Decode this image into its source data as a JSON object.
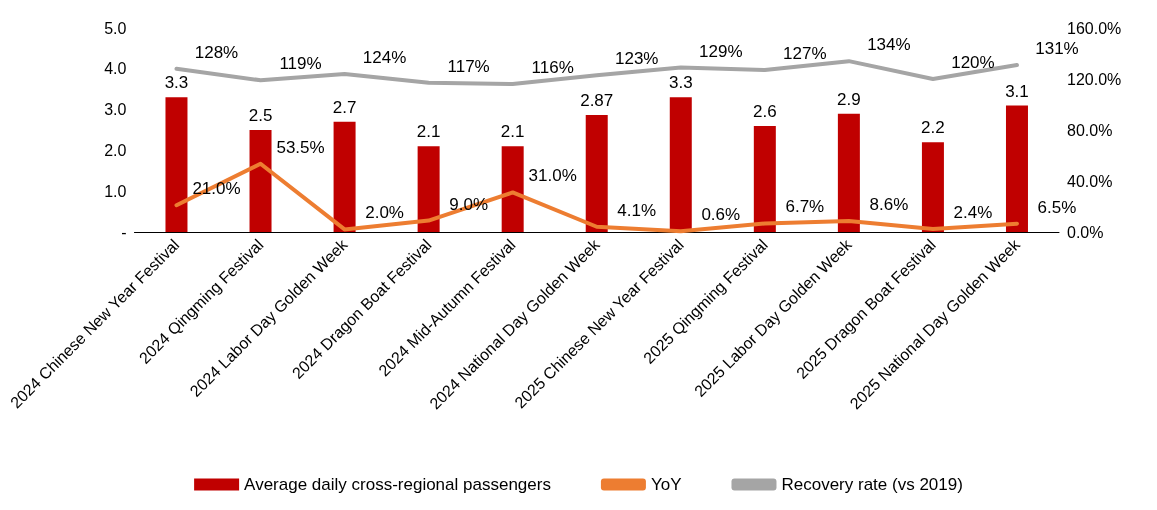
{
  "chart_data": {
    "type": "bar",
    "categories": [
      "2024 Chinese New Year Festival",
      "2024 Qingming Festival",
      "2024 Labor Day Golden Week",
      "2024 Dragon Boat Festival",
      "2024 Mid-Autumn Festival",
      "2024 National Day Golden Week",
      "2025 Chinese New Year Festival",
      "2025 Qingming Festival",
      "2025 Labor Day Golden Week",
      "2025 Dragon Boat Festival",
      "2025 National Day Golden Week"
    ],
    "series": [
      {
        "name": "Average daily cross-regional passengers",
        "color": "#c00000",
        "values": [
          3.3,
          2.5,
          2.7,
          2.1,
          2.1,
          2.87,
          3.3,
          2.6,
          2.9,
          2.2,
          3.1
        ]
      },
      {
        "name": "YoY",
        "type": "line",
        "axis": "y2",
        "color": "#ed7d31",
        "values": [
          21.0,
          53.5,
          2.0,
          9.0,
          31.0,
          4.1,
          0.6,
          6.7,
          8.6,
          2.4,
          6.5
        ],
        "value_labels": [
          "21.0%",
          "53.5%",
          "2.0%",
          "9.0%",
          "31.0%",
          "4.1%",
          "0.6%",
          "6.7%",
          "8.6%",
          "2.4%",
          "6.5%"
        ]
      },
      {
        "name": "Recovery rate (vs 2019)",
        "type": "line",
        "axis": "y2",
        "color": "#a5a5a5",
        "values": [
          128,
          119,
          124,
          117,
          116,
          123,
          129,
          127,
          134,
          120,
          131
        ],
        "value_labels": [
          "128%",
          "119%",
          "124%",
          "117%",
          "116%",
          "123%",
          "129%",
          "127%",
          "134%",
          "120%",
          "131%"
        ]
      }
    ],
    "data_labels": true,
    "ylim": [
      0,
      5
    ],
    "yticks": [
      {
        "value": 0,
        "label": "-"
      },
      {
        "value": 1,
        "label": "1.0"
      },
      {
        "value": 2,
        "label": "2.0"
      },
      {
        "value": 3,
        "label": "3.0"
      },
      {
        "value": 4,
        "label": "4.0"
      },
      {
        "value": 5,
        "label": "5.0"
      }
    ],
    "y2lim": [
      0,
      160
    ],
    "y2ticks": [
      {
        "value": 0,
        "label": "0.0%"
      },
      {
        "value": 40,
        "label": "40.0%"
      },
      {
        "value": 80,
        "label": "80.0%"
      },
      {
        "value": 120,
        "label": "120.0%"
      },
      {
        "value": 160,
        "label": "160.0%"
      }
    ],
    "grid": false,
    "legend": "bottom",
    "marker": "none"
  }
}
